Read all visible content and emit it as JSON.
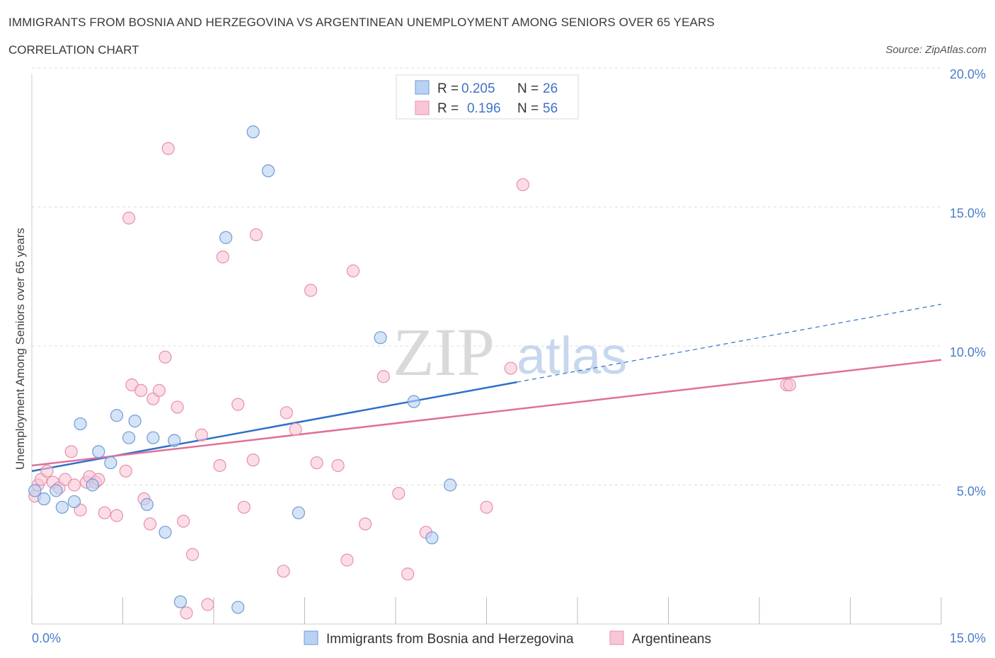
{
  "header": {
    "title": "IMMIGRANTS FROM BOSNIA AND HERZEGOVINA VS ARGENTINEAN UNEMPLOYMENT AMONG SENIORS OVER 65 YEARS",
    "subtitle": "CORRELATION CHART",
    "source": "Source: ZipAtlas.com"
  },
  "watermark": {
    "zip": "ZIP",
    "atlas": "atlas"
  },
  "legend": {
    "rows": [
      {
        "r_label": "R =",
        "r_value": "0.205",
        "n_label": "N =",
        "n_value": "26"
      },
      {
        "r_label": "R =",
        "r_value": "0.196",
        "n_label": "N =",
        "n_value": "56"
      }
    ]
  },
  "colors": {
    "blue_fill": "#b9d1f2",
    "blue_stroke": "#6f9ad8",
    "blue_line": "#2f6fca",
    "pink_fill": "#f8c6d6",
    "pink_stroke": "#e88fab",
    "pink_line": "#e0709a",
    "grid": "#dddddd",
    "tick_text": "#4a7cc9"
  },
  "chart_data": {
    "type": "scatter",
    "title": "IMMIGRANTS FROM BOSNIA AND HERZEGOVINA VS ARGENTINEAN UNEMPLOYMENT AMONG SENIORS OVER 65 YEARS",
    "xlabel": "",
    "ylabel": "Unemployment Among Seniors over 65 years",
    "xlim": [
      0,
      15
    ],
    "ylim": [
      0,
      20
    ],
    "x_tick_labels": [
      "0.0%",
      "15.0%"
    ],
    "y_ticks": [
      5,
      10,
      15,
      20
    ],
    "y_tick_labels": [
      "5.0%",
      "10.0%",
      "15.0%",
      "20.0%"
    ],
    "grid": true,
    "legend_position": "top-center",
    "series": [
      {
        "name": "Immigrants from Bosnia and Herzegovina",
        "r": 0.205,
        "n": 26,
        "trend": {
          "x0": 0,
          "y0": 5.5,
          "x1": 8.0,
          "y1": 8.7,
          "dash_to_x": 15,
          "dash_to_y": 11.5
        },
        "points": [
          [
            0.05,
            4.8
          ],
          [
            0.2,
            4.5
          ],
          [
            0.4,
            4.8
          ],
          [
            0.5,
            4.2
          ],
          [
            0.7,
            4.4
          ],
          [
            0.8,
            7.2
          ],
          [
            1.0,
            5.0
          ],
          [
            1.1,
            6.2
          ],
          [
            1.3,
            5.8
          ],
          [
            1.4,
            7.5
          ],
          [
            1.6,
            6.7
          ],
          [
            1.7,
            7.3
          ],
          [
            1.9,
            4.3
          ],
          [
            2.0,
            6.7
          ],
          [
            2.2,
            3.3
          ],
          [
            2.35,
            6.6
          ],
          [
            2.45,
            0.8
          ],
          [
            3.2,
            13.9
          ],
          [
            3.4,
            0.6
          ],
          [
            3.65,
            17.7
          ],
          [
            3.9,
            16.3
          ],
          [
            4.4,
            4.0
          ],
          [
            5.75,
            10.3
          ],
          [
            6.3,
            8.0
          ],
          [
            6.6,
            3.1
          ],
          [
            6.9,
            5.0
          ]
        ]
      },
      {
        "name": "Argentineans",
        "r": 0.196,
        "n": 56,
        "trend": {
          "x0": 0,
          "y0": 5.7,
          "x1": 15,
          "y1": 9.5
        },
        "points": [
          [
            0.05,
            4.6
          ],
          [
            0.1,
            5.0
          ],
          [
            0.15,
            5.2
          ],
          [
            0.25,
            5.5
          ],
          [
            0.35,
            5.1
          ],
          [
            0.45,
            4.9
          ],
          [
            0.55,
            5.2
          ],
          [
            0.65,
            6.2
          ],
          [
            0.7,
            5.0
          ],
          [
            0.8,
            4.1
          ],
          [
            0.9,
            5.1
          ],
          [
            0.95,
            5.3
          ],
          [
            1.05,
            5.1
          ],
          [
            1.1,
            5.2
          ],
          [
            1.2,
            4.0
          ],
          [
            1.4,
            3.9
          ],
          [
            1.55,
            5.5
          ],
          [
            1.6,
            14.6
          ],
          [
            1.65,
            8.6
          ],
          [
            1.8,
            8.4
          ],
          [
            1.85,
            4.5
          ],
          [
            1.95,
            3.6
          ],
          [
            2.0,
            8.1
          ],
          [
            2.1,
            8.4
          ],
          [
            2.2,
            9.6
          ],
          [
            2.25,
            17.1
          ],
          [
            2.4,
            7.8
          ],
          [
            2.5,
            3.7
          ],
          [
            2.65,
            2.5
          ],
          [
            2.8,
            6.8
          ],
          [
            2.9,
            0.7
          ],
          [
            2.55,
            0.4
          ],
          [
            3.1,
            5.7
          ],
          [
            3.15,
            13.2
          ],
          [
            3.4,
            7.9
          ],
          [
            3.5,
            4.2
          ],
          [
            3.65,
            5.9
          ],
          [
            3.7,
            14.0
          ],
          [
            4.15,
            1.9
          ],
          [
            4.2,
            7.6
          ],
          [
            4.35,
            7.0
          ],
          [
            4.6,
            12.0
          ],
          [
            4.7,
            5.8
          ],
          [
            5.05,
            5.7
          ],
          [
            5.2,
            2.3
          ],
          [
            5.3,
            12.7
          ],
          [
            5.5,
            3.6
          ],
          [
            5.8,
            8.9
          ],
          [
            6.05,
            4.7
          ],
          [
            6.2,
            1.8
          ],
          [
            6.5,
            3.3
          ],
          [
            7.5,
            4.2
          ],
          [
            7.9,
            9.2
          ],
          [
            8.1,
            15.8
          ],
          [
            12.45,
            8.6
          ],
          [
            12.5,
            8.6
          ]
        ]
      }
    ]
  }
}
